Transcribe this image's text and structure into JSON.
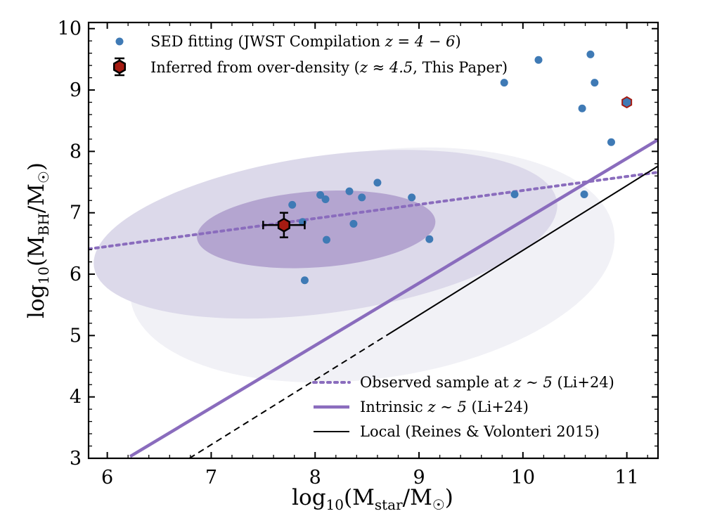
{
  "chart_data": {
    "type": "scatter",
    "title": "",
    "xlabel": {
      "pre": "log",
      "sub1": "10",
      "mid": "(M",
      "sub2": "star",
      "post": "/M",
      "sun": "☉",
      "end": ")"
    },
    "ylabel": {
      "pre": "log",
      "sub1": "10",
      "mid": "(M",
      "sub2": "BH",
      "post": "/M",
      "sun": "☉",
      "end": ")"
    },
    "xlim": [
      5.82,
      11.3
    ],
    "ylim": [
      3.0,
      10.1
    ],
    "xticks": [
      "6",
      "7",
      "8",
      "9",
      "10",
      "11"
    ],
    "yticks": [
      "3",
      "4",
      "5",
      "6",
      "7",
      "8",
      "9",
      "10"
    ],
    "colors": {
      "sed": "#3f7ab5",
      "purple": "#8a6cbd",
      "marker_fill": "#a51b12",
      "ellipse_inner": "#b4a5d0",
      "ellipse_mid": "#dcd9ea",
      "ellipse_outer": "#f1f1f6"
    },
    "ellipses": [
      {
        "name": "outer",
        "center": [
          8.55,
          6.15
        ],
        "semi_x": 2.35,
        "semi_y": 1.85,
        "angle_deg": 8
      },
      {
        "name": "mid",
        "center": [
          8.1,
          6.65
        ],
        "semi_x": 2.25,
        "semi_y": 1.28,
        "angle_deg": 8
      },
      {
        "name": "inner",
        "center": [
          8.01,
          6.73
        ],
        "semi_x": 1.15,
        "semi_y": 0.62,
        "angle_deg": 4
      }
    ],
    "lines": [
      {
        "name": "observed",
        "x": [
          5.82,
          11.3
        ],
        "y": [
          6.41,
          7.66
        ],
        "style": "dotted"
      },
      {
        "name": "intrinsic",
        "x": [
          6.22,
          11.3
        ],
        "y": [
          3.03,
          8.19
        ],
        "style": "solid"
      },
      {
        "name": "local",
        "x": [
          6.79,
          11.3
        ],
        "y": [
          3.0,
          7.76
        ],
        "style": "solid-dashed",
        "dash_below_y": 5.0
      }
    ],
    "sed_points": [
      [
        7.78,
        7.13
      ],
      [
        8.05,
        7.29
      ],
      [
        8.1,
        7.22
      ],
      [
        8.33,
        7.35
      ],
      [
        8.45,
        7.25
      ],
      [
        8.6,
        7.49
      ],
      [
        8.93,
        7.25
      ],
      [
        7.88,
        6.85
      ],
      [
        8.37,
        6.82
      ],
      [
        8.11,
        6.56
      ],
      [
        9.1,
        6.57
      ],
      [
        7.9,
        5.9
      ],
      [
        9.82,
        9.12
      ],
      [
        10.15,
        9.49
      ],
      [
        10.65,
        9.58
      ],
      [
        10.69,
        9.12
      ],
      [
        10.57,
        8.7
      ],
      [
        10.85,
        8.15
      ],
      [
        9.92,
        7.3
      ],
      [
        10.59,
        7.3
      ]
    ],
    "this_paper_points": [
      {
        "x": 7.7,
        "y": 6.8,
        "xerr": 0.2,
        "yerr": 0.2,
        "errorbar": true
      },
      {
        "x": 11.0,
        "y": 8.8,
        "errorbar": false
      }
    ],
    "legend_top": [
      {
        "label": "SED fitting (JWST Compilation",
        "math": "z = 4 − 6",
        "tail": ")"
      },
      {
        "label": "Inferred from over-density (",
        "math": "z ≈ 4.5",
        "tail": ", This Paper)"
      }
    ],
    "legend_bottom": [
      {
        "label": "Observed sample at",
        "math": "z ∼ 5",
        "tail": "(Li+24)",
        "style": "dotted"
      },
      {
        "label": "Intrinsic",
        "math": "z ∼ 5",
        "tail": "(Li+24)",
        "style": "solid-purple"
      },
      {
        "label": "Local (Reines & Volonteri 2015)",
        "math": "",
        "tail": "",
        "style": "solid-black"
      }
    ]
  }
}
